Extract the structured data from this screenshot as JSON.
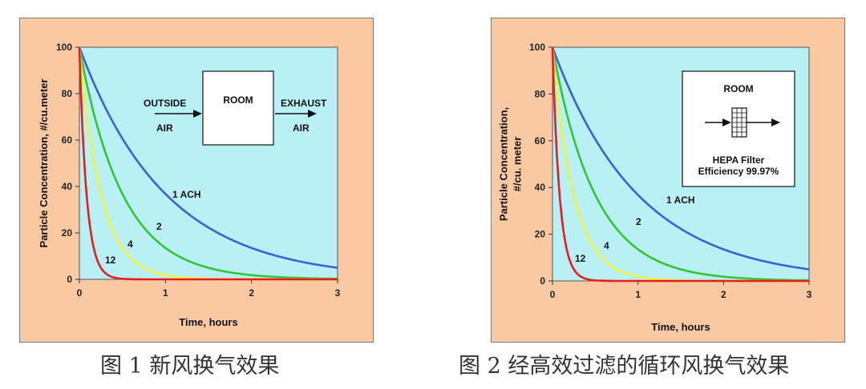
{
  "chart_data": [
    {
      "type": "line",
      "caption": "图 1 新风换气效果",
      "xlabel": "Time, hours",
      "ylabel": "Particle Concentration, #/cu.meter",
      "ylabel_lines": [
        "Particle Concentration, #/cu.meter"
      ],
      "xlim": [
        0,
        3
      ],
      "ylim": [
        0,
        100
      ],
      "xticks": [
        0,
        1,
        2,
        3
      ],
      "yticks": [
        0,
        20,
        40,
        60,
        80,
        100
      ],
      "grid": false,
      "series": [
        {
          "name": "1 ACH",
          "label": "1 ACH",
          "air_changes_per_hour": 1,
          "color": "#3c5fd6",
          "initial": 100
        },
        {
          "name": "2",
          "label": "2",
          "air_changes_per_hour": 2,
          "color": "#33c533",
          "initial": 100
        },
        {
          "name": "4",
          "label": "4",
          "air_changes_per_hour": 4,
          "color": "#f4f23c",
          "initial": 100
        },
        {
          "name": "12",
          "label": "12",
          "air_changes_per_hour": 12,
          "color": "#e51d1d",
          "initial": 100
        }
      ],
      "diagram": {
        "type": "outdoor-air",
        "box_label": "ROOM",
        "inlet_top": "OUTSIDE",
        "inlet_bottom": "AIR",
        "outlet_top": "EXHAUST",
        "outlet_bottom": "AIR"
      }
    },
    {
      "type": "line",
      "caption": "图 2 经高效过滤的循环风换气效果",
      "xlabel": "Time, hours",
      "ylabel": "Particle Concentration, #/cu. meter",
      "ylabel_lines": [
        "Particle Concentration,",
        "#/cu. meter"
      ],
      "xlim": [
        0,
        3
      ],
      "ylim": [
        0,
        100
      ],
      "xticks": [
        0,
        1,
        2,
        3
      ],
      "yticks": [
        0,
        20,
        40,
        60,
        80,
        100
      ],
      "grid": false,
      "series": [
        {
          "name": "1 ACH",
          "label": "1 ACH",
          "air_changes_per_hour": 1,
          "color": "#3c5fd6",
          "initial": 100
        },
        {
          "name": "2",
          "label": "2",
          "air_changes_per_hour": 2,
          "color": "#33c533",
          "initial": 100
        },
        {
          "name": "4",
          "label": "4",
          "air_changes_per_hour": 4,
          "color": "#f4f23c",
          "initial": 100
        },
        {
          "name": "12",
          "label": "12",
          "air_changes_per_hour": 12,
          "color": "#e51d1d",
          "initial": 100
        }
      ],
      "diagram": {
        "type": "hepa-recirculation",
        "title": "ROOM",
        "filter_line1": "HEPA Filter",
        "filter_line2": "Efficiency 99.97%"
      }
    }
  ]
}
